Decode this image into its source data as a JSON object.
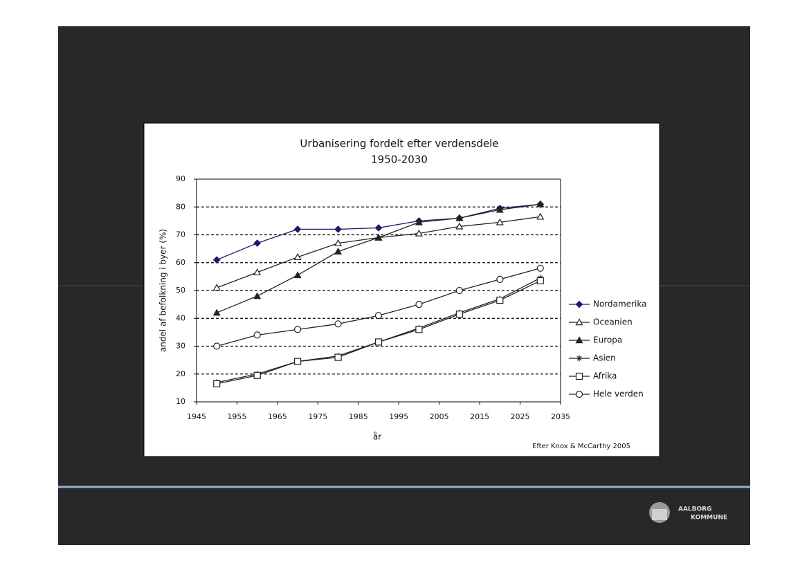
{
  "chart_data": {
    "type": "line",
    "title": "Urbanisering fordelt efter verdensdele",
    "subtitle": "1950-2030",
    "y_label": "andel af befolkning i byer (%)",
    "x_label": "år",
    "source": "Efter Knox & McCarthy 2005",
    "x": [
      1950,
      1960,
      1970,
      1980,
      1990,
      2000,
      2010,
      2020,
      2030
    ],
    "xlim": [
      1945,
      2035
    ],
    "xticks": [
      1945,
      1955,
      1965,
      1975,
      1985,
      1995,
      2005,
      2015,
      2025,
      2035
    ],
    "ylim": [
      10,
      90
    ],
    "yticks": [
      10,
      20,
      30,
      40,
      50,
      60,
      70,
      80,
      90
    ],
    "grid": true,
    "legend": "right",
    "series": [
      {
        "name": "Nordamerika",
        "color": "#1c1c6b",
        "marker": "diamond",
        "values": [
          61,
          67,
          72,
          72,
          72.5,
          75,
          76,
          79.5,
          81
        ]
      },
      {
        "name": "Oceanien",
        "color": "#222222",
        "marker": "triangle-open",
        "values": [
          51,
          56.5,
          62,
          67,
          69,
          70.5,
          73,
          74.5,
          76.5
        ]
      },
      {
        "name": "Europa",
        "color": "#222222",
        "marker": "triangle",
        "values": [
          42,
          48,
          55.5,
          64,
          69,
          74.5,
          76,
          79,
          81
        ]
      },
      {
        "name": "Asien",
        "color": "#222222",
        "marker": "star",
        "values": [
          17,
          20,
          24.5,
          26.5,
          31.5,
          36.5,
          42,
          47,
          54.5
        ]
      },
      {
        "name": "Afrika",
        "color": "#222222",
        "marker": "square-open",
        "values": [
          16.5,
          19.5,
          24.5,
          26,
          31.5,
          36,
          41.5,
          46.5,
          53.5
        ]
      },
      {
        "name": "Hele verden",
        "color": "#222222",
        "marker": "circle-open",
        "values": [
          30,
          34,
          36,
          38,
          41,
          45,
          50,
          54,
          58
        ]
      }
    ]
  },
  "slide": {
    "logo": [
      "AALBORG",
      "KOMMUNE"
    ]
  }
}
